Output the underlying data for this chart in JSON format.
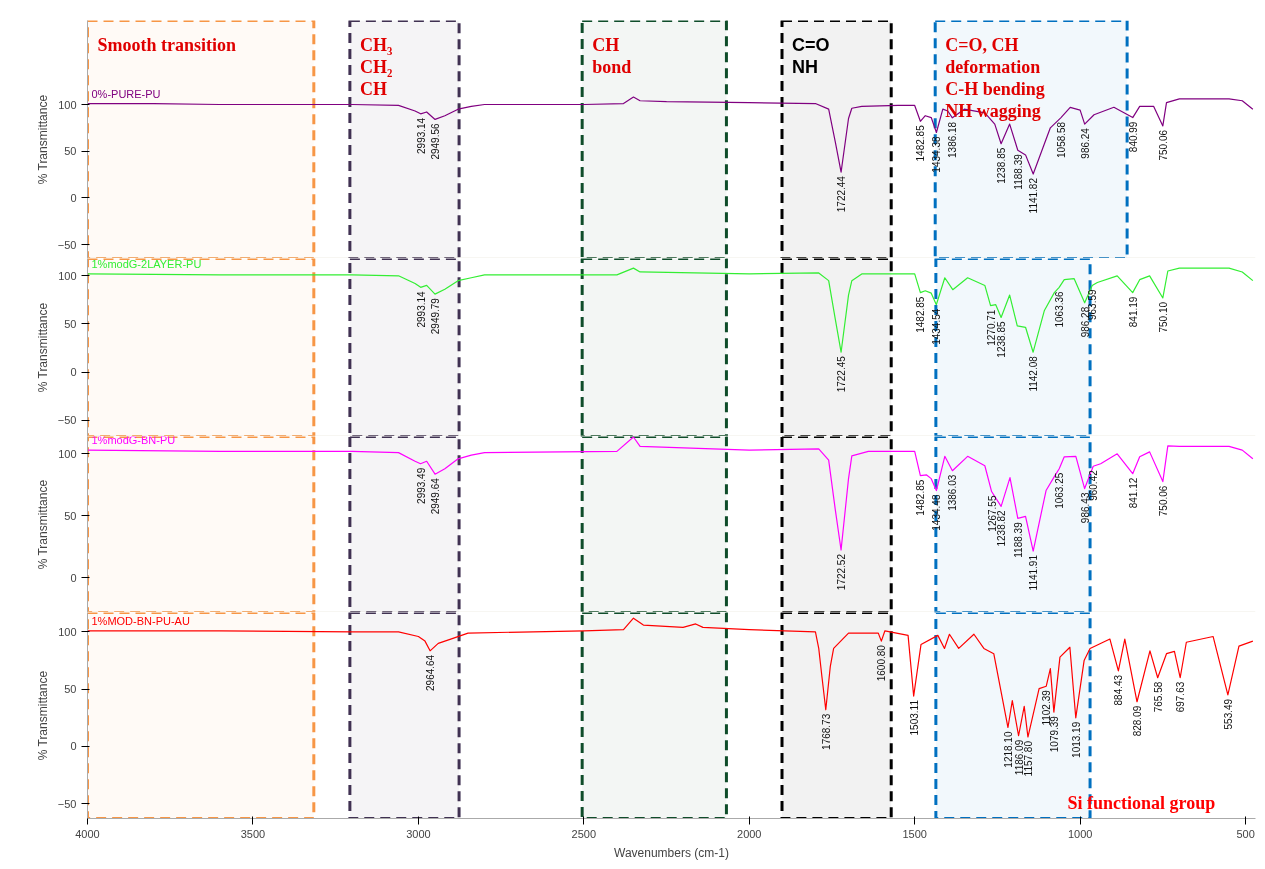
{
  "chart_data": [
    {
      "type": "line",
      "xlim": [
        4000,
        470
      ],
      "xticks": [
        4000,
        3500,
        3000,
        2500,
        2000,
        1500,
        1000,
        500
      ],
      "ylim": [
        -65,
        190
      ],
      "yticks": [
        -50,
        0,
        50,
        100
      ],
      "ylabel": "% Transmittance",
      "tick_labels": "y",
      "series": [
        {
          "name": "0%-PURE-PU",
          "color": "#800080",
          "x": [
            4000,
            3800,
            3600,
            3400,
            3200,
            3060,
            3010,
            2993.14,
            2975,
            2949.56,
            2920,
            2880,
            2840,
            2800,
            2500,
            2380,
            2350,
            2330,
            2250,
            2000,
            1800,
            1760,
            1740,
            1722.44,
            1700,
            1690,
            1660,
            1550,
            1500,
            1482.85,
            1468,
            1450,
            1434.38,
            1415,
            1400,
            1386.18,
            1350,
            1288,
            1258,
            1238.85,
            1213,
            1188.39,
            1165,
            1141.82,
            1108,
            1090,
            1058.58,
            1030,
            1000,
            986.24,
            958,
            898,
            840.99,
            820,
            778,
            750.06,
            739,
            700,
            550,
            510,
            478
          ],
          "values": [
            101,
            101,
            100,
            100,
            100,
            99,
            93,
            90,
            92,
            84,
            88,
            95,
            98,
            100,
            100,
            101,
            108,
            104,
            103,
            102,
            101,
            95,
            60,
            27.6,
            85,
            96,
            98,
            99,
            99,
            82,
            88,
            86,
            70,
            95,
            93,
            85.7,
            95,
            91,
            79,
            58,
            79,
            51,
            46,
            25.5,
            58,
            75,
            85.7,
            97,
            94,
            79,
            89,
            97,
            86,
            98,
            98,
            77,
            102,
            106,
            106,
            104,
            95
          ]
        }
      ],
      "annotations": [
        {
          "text": "2993.14",
          "x": 2993.14,
          "y": 90
        },
        {
          "text": "2949.56",
          "x": 2949.56,
          "y": 84
        },
        {
          "text": "1722.44",
          "x": 1722.44,
          "y": 27.6
        },
        {
          "text": "1482.85",
          "x": 1482.85,
          "y": 82
        },
        {
          "text": "1434.38",
          "x": 1434.38,
          "y": 70
        },
        {
          "text": "1386.18",
          "x": 1386.18,
          "y": 85.7
        },
        {
          "text": "1238.85",
          "x": 1238.85,
          "y": 58
        },
        {
          "text": "1188.39",
          "x": 1188.39,
          "y": 51
        },
        {
          "text": "1141.82",
          "x": 1141.82,
          "y": 25.5
        },
        {
          "text": "1058.58",
          "x": 1058.58,
          "y": 85.7
        },
        {
          "text": "986.24",
          "x": 986.24,
          "y": 79
        },
        {
          "text": "840.99",
          "x": 840.99,
          "y": 86
        },
        {
          "text": "750.06",
          "x": 750.06,
          "y": 77
        }
      ],
      "bands": [
        {
          "axis": "x",
          "from": 4000,
          "to": 3316,
          "label": "Smooth transition",
          "color": "#f79646"
        },
        {
          "axis": "x",
          "from": 3207,
          "to": 2877,
          "label": "CH₃\nCH₂\nCH",
          "color": "#403152"
        },
        {
          "axis": "x",
          "from": 2505,
          "to": 2069,
          "label": "CH\nbond",
          "color": "#0f4d2a"
        },
        {
          "axis": "x",
          "from": 1901,
          "to": 1571,
          "label": "C=O\nNH",
          "color": "#000000"
        },
        {
          "axis": "x",
          "from": 1438,
          "to": 858,
          "label": "C=O, CH\ndeformation\nC-H bending\nNH wagging",
          "color": "#0070c0"
        }
      ]
    },
    {
      "type": "line",
      "xlim": [
        4000,
        470
      ],
      "xticks": [
        4000,
        3500,
        3000,
        2500,
        2000,
        1500,
        1000,
        500
      ],
      "ylim": [
        -67,
        118
      ],
      "yticks": [
        -50,
        0,
        50,
        100
      ],
      "ylabel": "% Transmittance",
      "tick_labels": "y",
      "series": [
        {
          "name": "1%modG-2LAYER-PU",
          "color": "#33ee33",
          "x": [
            4000,
            3600,
            3200,
            3060,
            3010,
            2993.14,
            2975,
            2949.79,
            2920,
            2880,
            2840,
            2800,
            2400,
            2350,
            2330,
            2000,
            1790,
            1760,
            1740,
            1722.45,
            1700,
            1690,
            1660,
            1500,
            1482.85,
            1468,
            1450,
            1434.54,
            1409,
            1385,
            1340,
            1288,
            1270.71,
            1255,
            1238.85,
            1213,
            1190,
            1165,
            1142.08,
            1108,
            1078,
            1063.36,
            1048,
            1018,
            986.28,
            963.59,
            948,
            888,
            841.19,
            820,
            790,
            750.1,
            735,
            700,
            550,
            510,
            478
          ],
          "values": [
            102,
            101,
            101,
            100,
            92,
            88,
            90,
            81,
            86,
            95,
            98,
            101,
            101,
            108,
            104,
            102,
            103,
            95,
            55,
            20.6,
            80,
            95,
            102,
            102,
            82.5,
            84.5,
            82,
            70,
            98,
            85.6,
            98,
            90,
            69,
            70,
            56.7,
            80,
            48,
            46.5,
            20.6,
            64,
            82.5,
            88,
            96,
            97,
            72,
            90,
            93,
            100,
            82.5,
            96,
            100,
            77,
            105,
            108,
            108,
            104,
            95
          ]
        }
      ],
      "annotations": [
        {
          "text": "2993.14",
          "x": 2993.14,
          "y": 88
        },
        {
          "text": "2949.79",
          "x": 2949.79,
          "y": 81
        },
        {
          "text": "1722.45",
          "x": 1722.45,
          "y": 20.6
        },
        {
          "text": "1482.85",
          "x": 1482.85,
          "y": 82.5
        },
        {
          "text": "1434.54",
          "x": 1434.54,
          "y": 70
        },
        {
          "text": "1270.71",
          "x": 1270.71,
          "y": 69
        },
        {
          "text": "1238.85",
          "x": 1238.85,
          "y": 56.7
        },
        {
          "text": "1142.08",
          "x": 1142.08,
          "y": 20.6
        },
        {
          "text": "1063.36",
          "x": 1063.36,
          "y": 88
        },
        {
          "text": "986.28",
          "x": 986.28,
          "y": 72
        },
        {
          "text": "963.59",
          "x": 963.59,
          "y": 90
        },
        {
          "text": "841.19",
          "x": 841.19,
          "y": 82.5
        },
        {
          "text": "750.10",
          "x": 750.1,
          "y": 77
        }
      ],
      "bands": [
        {
          "axis": "x",
          "from": 4000,
          "to": 3316,
          "color": "#f79646"
        },
        {
          "axis": "x",
          "from": 3207,
          "to": 2877,
          "color": "#403152"
        },
        {
          "axis": "x",
          "from": 2505,
          "to": 2069,
          "color": "#0f4d2a"
        },
        {
          "axis": "x",
          "from": 1901,
          "to": 1571,
          "color": "#000000"
        },
        {
          "axis": "x",
          "from": 1436,
          "to": 970,
          "color": "#0070c0"
        }
      ]
    },
    {
      "type": "line",
      "xlim": [
        4000,
        470
      ],
      "xticks": [
        4000,
        3500,
        3000,
        2500,
        2000,
        1500,
        1000,
        500
      ],
      "ylim": [
        -28,
        114
      ],
      "yticks": [
        0,
        50,
        100
      ],
      "ylabel": "% Transmittance",
      "tick_labels": "y",
      "series": [
        {
          "name": "1%modG-BN-PU",
          "color": "#ff00ff",
          "x": [
            4000,
            3600,
            3200,
            3060,
            3010,
            2993.49,
            2975,
            2949.64,
            2920,
            2880,
            2840,
            2800,
            2400,
            2350,
            2330,
            2000,
            1790,
            1760,
            1740,
            1722.52,
            1700,
            1690,
            1640,
            1500,
            1482.85,
            1464,
            1450,
            1434.48,
            1409,
            1386.03,
            1340,
            1288,
            1267.55,
            1238.82,
            1212,
            1188.39,
            1165,
            1141.91,
            1103,
            1078,
            1063.25,
            1048,
            1013,
            986.43,
            960.42,
            938,
            888,
            841.12,
            820,
            790,
            750.06,
            735,
            700,
            550,
            510,
            478
          ],
          "values": [
            103,
            102,
            102,
            101,
            94,
            92,
            94,
            83.6,
            88,
            96,
            99,
            101,
            102,
            113.6,
            106,
            103,
            104,
            95,
            55,
            22.4,
            80,
            98.4,
            102,
            102,
            82.4,
            83,
            80,
            70.4,
            98,
            86.4,
            98,
            90.4,
            69.6,
            57.6,
            80.8,
            48,
            49.6,
            21.6,
            70.4,
            81.6,
            88,
            97.6,
            98,
            72,
            90,
            92,
            100,
            84,
            97.6,
            101.6,
            77.6,
            106.4,
            106,
            106,
            103,
            96
          ]
        }
      ],
      "annotations": [
        {
          "text": "2993.49",
          "x": 2993.49,
          "y": 92
        },
        {
          "text": "2949.64",
          "x": 2949.64,
          "y": 83.6
        },
        {
          "text": "1722.52",
          "x": 1722.52,
          "y": 22.4
        },
        {
          "text": "1482.85",
          "x": 1482.85,
          "y": 82.4
        },
        {
          "text": "1434.48",
          "x": 1434.48,
          "y": 70.4
        },
        {
          "text": "1386.03",
          "x": 1386.03,
          "y": 86.4
        },
        {
          "text": "1267.55",
          "x": 1267.55,
          "y": 69.6
        },
        {
          "text": "1238.82",
          "x": 1238.82,
          "y": 57.6
        },
        {
          "text": "1188.39",
          "x": 1188.39,
          "y": 48
        },
        {
          "text": "1141.91",
          "x": 1141.91,
          "y": 21.6
        },
        {
          "text": "1063.25",
          "x": 1063.25,
          "y": 88
        },
        {
          "text": "986.43",
          "x": 986.43,
          "y": 72
        },
        {
          "text": "960.42",
          "x": 960.42,
          "y": 90
        },
        {
          "text": "841.12",
          "x": 841.12,
          "y": 84
        },
        {
          "text": "750.06",
          "x": 750.06,
          "y": 77.6
        }
      ],
      "bands": [
        {
          "axis": "x",
          "from": 4000,
          "to": 3316,
          "color": "#f79646"
        },
        {
          "axis": "x",
          "from": 3207,
          "to": 2877,
          "color": "#403152"
        },
        {
          "axis": "x",
          "from": 2505,
          "to": 2069,
          "color": "#0f4d2a"
        },
        {
          "axis": "x",
          "from": 1901,
          "to": 1571,
          "color": "#000000"
        },
        {
          "axis": "x",
          "from": 1436,
          "to": 970,
          "color": "#0070c0"
        }
      ]
    },
    {
      "type": "line",
      "xlim": [
        4000,
        470
      ],
      "xticks": [
        4000,
        3500,
        3000,
        2500,
        2000,
        1500,
        1000,
        500
      ],
      "ylim": [
        -63,
        117
      ],
      "yticks": [
        -50,
        0,
        50,
        100
      ],
      "xlabel": "Wavenumbers (cm-1)",
      "ylabel": "% Transmittance",
      "series": [
        {
          "name": "1%MOD-BN-PU-AU",
          "color": "#ff0000",
          "x": [
            4000,
            3600,
            3200,
            3060,
            3000,
            2980,
            2964.64,
            2940,
            2900,
            2850,
            2500,
            2380,
            2350,
            2320,
            2200,
            2162,
            2140,
            2000,
            1800,
            1790,
            1780,
            1768.73,
            1755,
            1745,
            1700,
            1610,
            1600.8,
            1590,
            1520,
            1503.11,
            1481,
            1430,
            1410,
            1395,
            1367,
            1321,
            1291,
            1261,
            1218.1,
            1205,
            1186.09,
            1169,
            1157.8,
            1124,
            1102.39,
            1090,
            1079.39,
            1061,
            1031,
            1013.19,
            988,
            970,
            910,
            884.43,
            865,
            828.09,
            789,
            765.58,
            739,
            715,
            697.63,
            679,
            598,
            553.49,
            520,
            478
          ],
          "values": [
            101,
            101,
            100,
            100,
            96,
            92,
            83.5,
            90,
            94,
            99,
            101,
            102,
            112,
            106,
            104,
            107,
            104,
            102,
            100,
            85.6,
            60,
            32,
            70,
            85.6,
            99,
            99,
            92,
            101,
            97,
            44,
            89,
            97,
            85.6,
            98,
            85.6,
            98,
            85.6,
            81,
            16.5,
            40,
            9.3,
            35,
            8.2,
            50.5,
            52.6,
            68,
            30,
            78,
            86.6,
            25,
            75,
            85.6,
            93.8,
            66,
            93.8,
            39,
            83.5,
            60,
            81,
            83,
            60,
            91,
            96,
            45,
            87.6,
            92
          ]
        }
      ],
      "annotations": [
        {
          "text": "2964.64",
          "x": 2964.64,
          "y": 83.5
        },
        {
          "text": "1768.73",
          "x": 1768.73,
          "y": 32
        },
        {
          "text": "1600.80",
          "x": 1600.8,
          "y": 92
        },
        {
          "text": "1503.11",
          "x": 1503.11,
          "y": 44
        },
        {
          "text": "1218.10",
          "x": 1218.1,
          "y": 16.5
        },
        {
          "text": "1186.09",
          "x": 1186.09,
          "y": 9.3
        },
        {
          "text": "1157.80",
          "x": 1157.8,
          "y": 8.2
        },
        {
          "text": "1102.39",
          "x": 1102.39,
          "y": 52.6
        },
        {
          "text": "1079.39",
          "x": 1079.39,
          "y": 30
        },
        {
          "text": "1013.19",
          "x": 1013.19,
          "y": 25
        },
        {
          "text": "884.43",
          "x": 884.43,
          "y": 66
        },
        {
          "text": "828.09",
          "x": 828.09,
          "y": 39
        },
        {
          "text": "765.58",
          "x": 765.58,
          "y": 60
        },
        {
          "text": "697.63",
          "x": 697.63,
          "y": 60
        },
        {
          "text": "553.49",
          "x": 553.49,
          "y": 45
        },
        "Si functional group"
      ],
      "bands": [
        {
          "axis": "x",
          "from": 4000,
          "to": 3316,
          "color": "#f79646"
        },
        {
          "axis": "x",
          "from": 3207,
          "to": 2877,
          "color": "#403152"
        },
        {
          "axis": "x",
          "from": 2505,
          "to": 2069,
          "color": "#0f4d2a"
        },
        {
          "axis": "x",
          "from": 1901,
          "to": 1571,
          "color": "#000000"
        },
        {
          "axis": "x",
          "from": 1436,
          "to": 970,
          "color": "#0070c0"
        }
      ]
    }
  ]
}
